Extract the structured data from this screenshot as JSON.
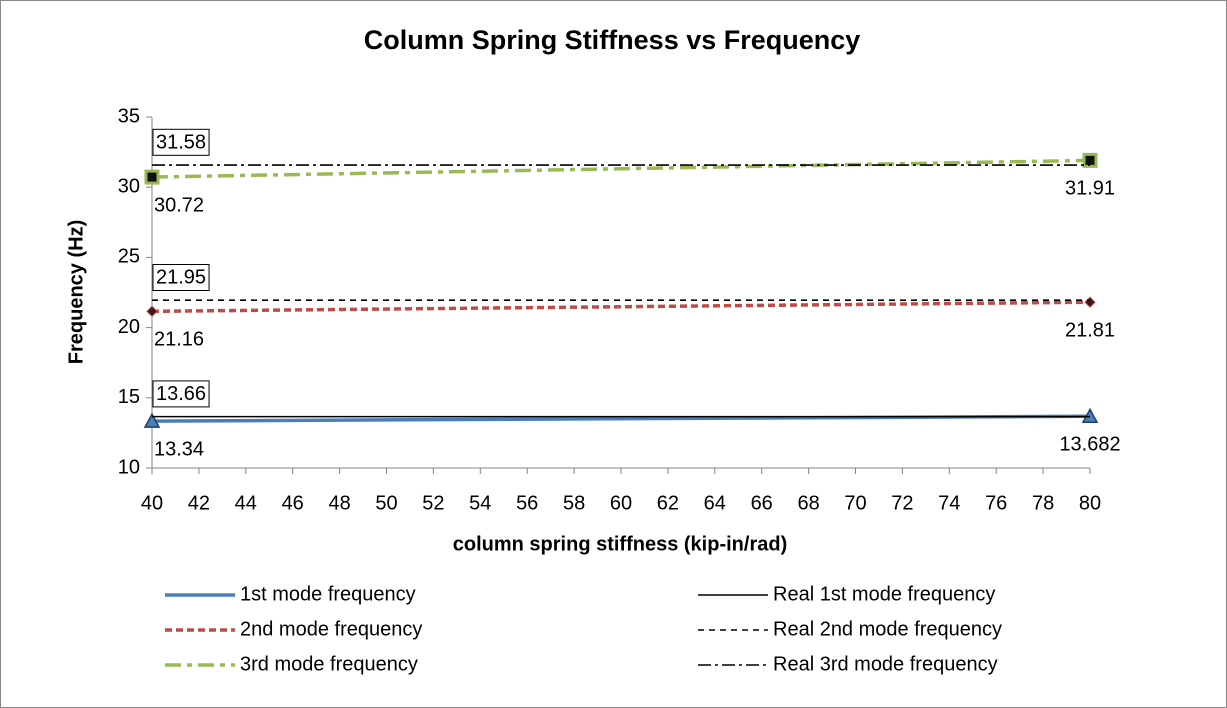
{
  "chart_data": {
    "type": "line",
    "title": "Column Spring Stiffness vs Frequency",
    "x_label": "column spring stiffness (kip-in/rad)",
    "y_label": "Frequency (Hz)",
    "x": [
      40,
      80
    ],
    "xlim": [
      40,
      80
    ],
    "xticks": [
      40,
      42,
      44,
      46,
      48,
      50,
      52,
      54,
      56,
      58,
      60,
      62,
      64,
      66,
      68,
      70,
      72,
      74,
      76,
      78,
      80
    ],
    "ylim": [
      10,
      35
    ],
    "yticks": [
      10,
      15,
      20,
      25,
      30,
      35
    ],
    "grid": false,
    "legend": "bottom",
    "series": [
      {
        "name": "1st mode frequency",
        "color": "#4a7ebb",
        "dash": "solid",
        "marker": "triangle",
        "data_labels": "all",
        "values": [
          13.34,
          13.682
        ]
      },
      {
        "name": "2nd mode frequency",
        "color": "#be4b48",
        "dash": "dash",
        "marker": "diamond",
        "data_labels": "all",
        "values": [
          21.16,
          21.81
        ]
      },
      {
        "name": "3rd mode frequency",
        "color": "#98b954",
        "dash": "dashdot",
        "marker": "square",
        "data_labels": "all",
        "values": [
          30.72,
          31.91
        ]
      },
      {
        "name": "Real 1st mode frequency",
        "color": "#000000",
        "dash": "solid",
        "marker": "none",
        "data_labels": "first",
        "values": [
          13.66,
          13.66
        ]
      },
      {
        "name": "Real 2nd mode frequency",
        "color": "#000000",
        "dash": "dash",
        "marker": "none",
        "data_labels": "first",
        "values": [
          21.95,
          21.95
        ]
      },
      {
        "name": "Real 3rd mode frequency",
        "color": "#000000",
        "dash": "dashdot",
        "marker": "none",
        "data_labels": "first",
        "values": [
          31.58,
          31.58
        ]
      }
    ]
  }
}
